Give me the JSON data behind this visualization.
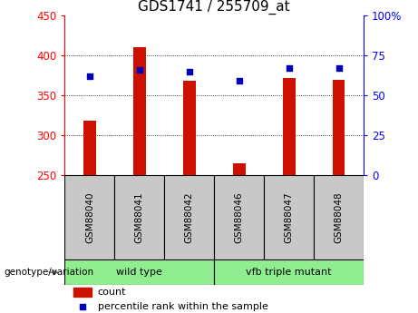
{
  "title": "GDS1741 / 255709_at",
  "samples": [
    "GSM88040",
    "GSM88041",
    "GSM88042",
    "GSM88046",
    "GSM88047",
    "GSM88048"
  ],
  "counts": [
    318,
    410,
    368,
    265,
    372,
    370
  ],
  "percentile_ranks": [
    62,
    66,
    65,
    59,
    67,
    67
  ],
  "ylim_left": [
    250,
    450
  ],
  "ylim_right": [
    0,
    100
  ],
  "yticks_left": [
    250,
    300,
    350,
    400,
    450
  ],
  "yticks_right": [
    0,
    25,
    50,
    75,
    100
  ],
  "ytick_labels_right": [
    "0",
    "25",
    "50",
    "75",
    "100%"
  ],
  "bar_color": "#cc1100",
  "dot_color": "#0000bb",
  "grid_color": "#000000",
  "wild_type_label": "wild type",
  "vfb_mutant_label": "vfb triple mutant",
  "legend_count": "count",
  "legend_percentile": "percentile rank within the sample",
  "xlabel_annotation": "genotype/variation",
  "bar_width": 0.25,
  "group_bg": "#c8c8c8",
  "group_label_bg": "#90ee90",
  "title_fontsize": 11,
  "tick_fontsize": 8.5
}
